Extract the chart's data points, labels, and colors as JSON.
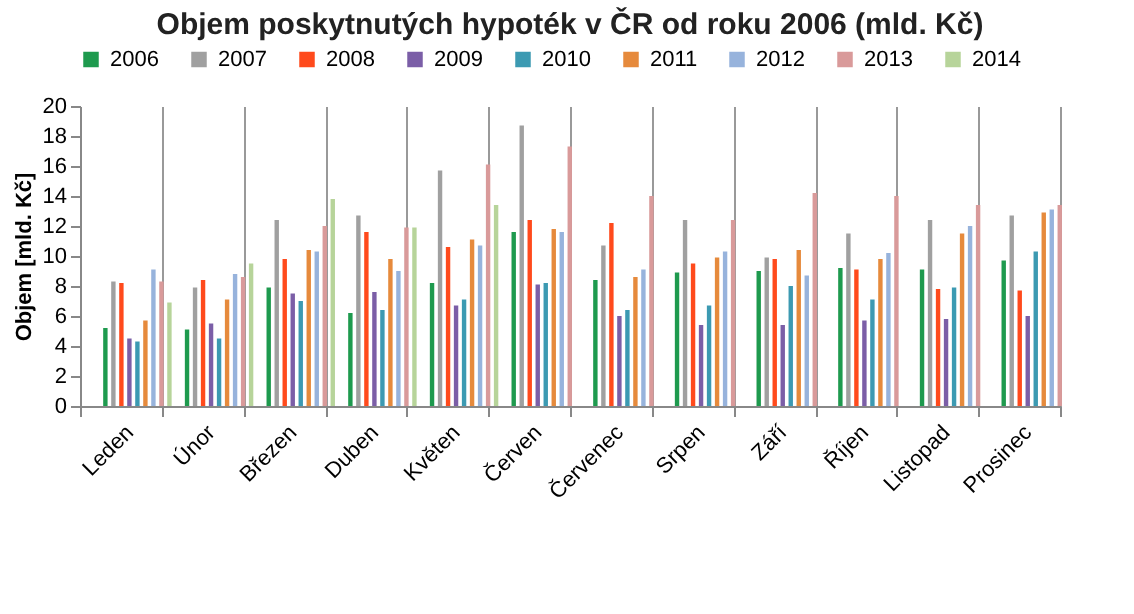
{
  "chart_data": {
    "type": "bar",
    "title": "Objem poskytnutých hypoték v ČR od roku 2006 (mld. Kč)",
    "ylabel": "Objem [mld. Kč]",
    "categories": [
      "Leden",
      "Únor",
      "Březen",
      "Duben",
      "Květen",
      "Červen",
      "Červenec",
      "Srpen",
      "Září",
      "Říjen",
      "Listopad",
      "Prosinec"
    ],
    "series": [
      {
        "name": "2006",
        "color": "#1e9a4e",
        "values": [
          5.2,
          5.1,
          7.9,
          6.2,
          8.2,
          11.6,
          8.4,
          8.9,
          9.0,
          9.2,
          9.1,
          9.7
        ]
      },
      {
        "name": "2007",
        "color": "#a0a0a0",
        "values": [
          8.3,
          7.9,
          12.4,
          12.7,
          15.7,
          18.7,
          10.7,
          12.4,
          9.9,
          11.5,
          12.4,
          12.7
        ]
      },
      {
        "name": "2008",
        "color": "#ff4a1c",
        "values": [
          8.2,
          8.4,
          9.8,
          11.6,
          10.6,
          12.4,
          12.2,
          9.5,
          9.8,
          9.1,
          7.8,
          7.7
        ]
      },
      {
        "name": "2009",
        "color": "#7b5ea7",
        "values": [
          4.5,
          5.5,
          7.5,
          7.6,
          6.7,
          8.1,
          6.0,
          5.4,
          5.4,
          5.7,
          5.8,
          6.0
        ]
      },
      {
        "name": "2010",
        "color": "#3c9ab2",
        "values": [
          4.3,
          4.5,
          7.0,
          6.4,
          7.1,
          8.2,
          6.4,
          6.7,
          8.0,
          7.1,
          7.9,
          10.3
        ]
      },
      {
        "name": "2011",
        "color": "#e68a3c",
        "values": [
          5.7,
          7.1,
          10.4,
          9.8,
          11.1,
          11.8,
          8.6,
          9.9,
          10.4,
          9.8,
          11.5,
          12.9
        ]
      },
      {
        "name": "2012",
        "color": "#97b3dc",
        "values": [
          9.1,
          8.8,
          10.3,
          9.0,
          10.7,
          11.6,
          9.1,
          10.3,
          8.7,
          10.2,
          12.0,
          13.1
        ]
      },
      {
        "name": "2013",
        "color": "#d99a9a",
        "values": [
          8.3,
          8.6,
          12.0,
          11.9,
          16.1,
          17.3,
          14.0,
          12.4,
          14.2,
          14.0,
          13.4,
          13.4
        ]
      },
      {
        "name": "2014",
        "color": "#b7d49a",
        "values": [
          6.9,
          9.5,
          13.8,
          11.9,
          13.4,
          null,
          null,
          null,
          null,
          null,
          null,
          null
        ]
      }
    ],
    "ylim": [
      0,
      20
    ],
    "yticks": [
      0,
      2,
      4,
      6,
      8,
      10,
      12,
      14,
      16,
      18,
      20
    ],
    "grid": "x",
    "legend": "top"
  }
}
